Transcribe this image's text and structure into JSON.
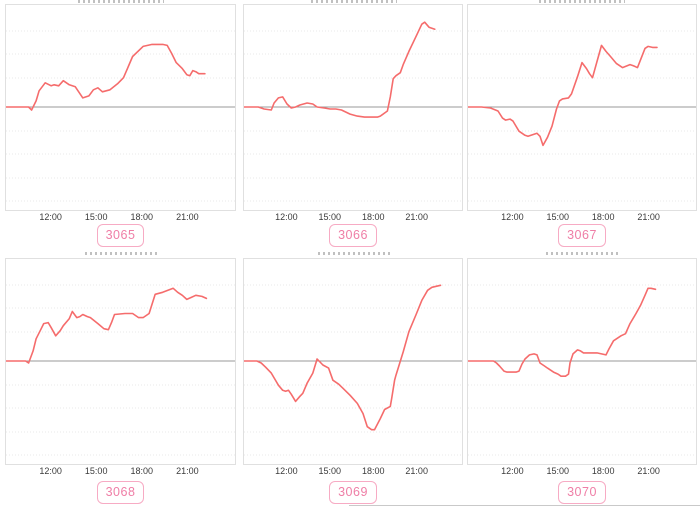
{
  "colors": {
    "line": "#f56c6c",
    "zero_line": "#9a9a9a",
    "grid": "#e9e9e9",
    "plot_border": "#e0e0e0",
    "tick_text": "#3a3a3a",
    "badge_border": "#f7abc4",
    "badge_text": "#ef7ea6",
    "divider": "#c9c9c9"
  },
  "axis": {
    "tick_labels": [
      "12:00",
      "15:00",
      "18:00",
      "21:00"
    ],
    "tick_hours": [
      12,
      15,
      18,
      21
    ],
    "hour_min": 9.0,
    "hour_max": 24.2,
    "y_axis_labels_visible": false,
    "zero_baseline": true,
    "grid": "horizontal-dotted"
  },
  "chart_data": [
    {
      "type": "line",
      "label": "3065",
      "x_unit": "time of day (hours)",
      "y_unit": "relative change vs. zero baseline (unlabeled axis, +1 = top of plot)",
      "points": [
        [
          9.0,
          0
        ],
        [
          10.5,
          0
        ],
        [
          10.7,
          -0.03
        ],
        [
          11.0,
          0.06
        ],
        [
          11.2,
          0.16
        ],
        [
          11.6,
          0.24
        ],
        [
          12.0,
          0.21
        ],
        [
          12.2,
          0.22
        ],
        [
          12.5,
          0.21
        ],
        [
          12.8,
          0.26
        ],
        [
          13.2,
          0.22
        ],
        [
          13.6,
          0.2
        ],
        [
          14.1,
          0.09
        ],
        [
          14.5,
          0.11
        ],
        [
          14.8,
          0.17
        ],
        [
          15.1,
          0.19
        ],
        [
          15.4,
          0.15
        ],
        [
          15.9,
          0.17
        ],
        [
          16.4,
          0.23
        ],
        [
          16.8,
          0.29
        ],
        [
          17.4,
          0.5
        ],
        [
          18.1,
          0.6
        ],
        [
          18.7,
          0.62
        ],
        [
          19.4,
          0.62
        ],
        [
          19.7,
          0.61
        ],
        [
          20.0,
          0.53
        ],
        [
          20.3,
          0.44
        ],
        [
          20.7,
          0.38
        ],
        [
          21.0,
          0.32
        ],
        [
          21.2,
          0.31
        ],
        [
          21.4,
          0.36
        ],
        [
          21.6,
          0.35
        ],
        [
          21.8,
          0.33
        ],
        [
          22.2,
          0.33
        ]
      ]
    },
    {
      "type": "line",
      "label": "3066",
      "x_unit": "time of day (hours)",
      "y_unit": "relative change vs. zero baseline (unlabeled axis, +1 = top of plot)",
      "points": [
        [
          9.0,
          0
        ],
        [
          10.0,
          0
        ],
        [
          10.4,
          -0.02
        ],
        [
          10.9,
          -0.03
        ],
        [
          11.1,
          0.04
        ],
        [
          11.4,
          0.09
        ],
        [
          11.7,
          0.1
        ],
        [
          12.0,
          0.03
        ],
        [
          12.3,
          -0.01
        ],
        [
          12.6,
          0.0
        ],
        [
          12.9,
          0.02
        ],
        [
          13.4,
          0.04
        ],
        [
          13.8,
          0.03
        ],
        [
          14.1,
          0.0
        ],
        [
          14.6,
          -0.01
        ],
        [
          15.0,
          -0.02
        ],
        [
          15.4,
          -0.02
        ],
        [
          15.8,
          -0.03
        ],
        [
          16.4,
          -0.07
        ],
        [
          16.9,
          -0.09
        ],
        [
          17.4,
          -0.1
        ],
        [
          17.9,
          -0.1
        ],
        [
          18.3,
          -0.1
        ],
        [
          18.5,
          -0.09
        ],
        [
          19.0,
          -0.04
        ],
        [
          19.2,
          0.1
        ],
        [
          19.4,
          0.28
        ],
        [
          19.6,
          0.31
        ],
        [
          19.9,
          0.34
        ],
        [
          20.1,
          0.42
        ],
        [
          20.5,
          0.55
        ],
        [
          21.0,
          0.7
        ],
        [
          21.4,
          0.82
        ],
        [
          21.6,
          0.84
        ],
        [
          21.9,
          0.79
        ],
        [
          22.3,
          0.77
        ]
      ]
    },
    {
      "type": "line",
      "label": "3067",
      "x_unit": "time of day (hours)",
      "y_unit": "relative change vs. zero baseline (unlabeled axis, +1 = top of plot)",
      "points": [
        [
          9.0,
          0
        ],
        [
          9.9,
          0
        ],
        [
          10.5,
          -0.01
        ],
        [
          11.0,
          -0.04
        ],
        [
          11.3,
          -0.11
        ],
        [
          11.5,
          -0.13
        ],
        [
          11.8,
          -0.12
        ],
        [
          12.0,
          -0.14
        ],
        [
          12.4,
          -0.24
        ],
        [
          12.8,
          -0.28
        ],
        [
          13.0,
          -0.29
        ],
        [
          13.4,
          -0.27
        ],
        [
          13.6,
          -0.26
        ],
        [
          13.8,
          -0.29
        ],
        [
          14.0,
          -0.38
        ],
        [
          14.3,
          -0.3
        ],
        [
          14.6,
          -0.19
        ],
        [
          14.9,
          -0.02
        ],
        [
          15.1,
          0.06
        ],
        [
          15.3,
          0.08
        ],
        [
          15.7,
          0.09
        ],
        [
          15.9,
          0.13
        ],
        [
          16.3,
          0.3
        ],
        [
          16.6,
          0.44
        ],
        [
          16.9,
          0.38
        ],
        [
          17.1,
          0.33
        ],
        [
          17.3,
          0.29
        ],
        [
          17.6,
          0.45
        ],
        [
          17.9,
          0.61
        ],
        [
          18.2,
          0.55
        ],
        [
          18.5,
          0.5
        ],
        [
          18.9,
          0.43
        ],
        [
          19.3,
          0.39
        ],
        [
          19.8,
          0.42
        ],
        [
          20.0,
          0.41
        ],
        [
          20.3,
          0.39
        ],
        [
          20.8,
          0.58
        ],
        [
          21.0,
          0.6
        ],
        [
          21.3,
          0.59
        ],
        [
          21.6,
          0.59
        ]
      ]
    },
    {
      "type": "line",
      "label": "3068",
      "x_unit": "time of day (hours)",
      "y_unit": "relative change vs. zero baseline (unlabeled axis, +1 = top of plot)",
      "points": [
        [
          9.0,
          0
        ],
        [
          10.3,
          0
        ],
        [
          10.5,
          -0.02
        ],
        [
          10.8,
          0.1
        ],
        [
          11.0,
          0.22
        ],
        [
          11.3,
          0.31
        ],
        [
          11.5,
          0.37
        ],
        [
          11.8,
          0.38
        ],
        [
          12.0,
          0.33
        ],
        [
          12.3,
          0.25
        ],
        [
          12.6,
          0.3
        ],
        [
          12.8,
          0.35
        ],
        [
          13.2,
          0.42
        ],
        [
          13.4,
          0.49
        ],
        [
          13.7,
          0.43
        ],
        [
          13.9,
          0.44
        ],
        [
          14.1,
          0.46
        ],
        [
          14.4,
          0.44
        ],
        [
          14.6,
          0.43
        ],
        [
          15.1,
          0.37
        ],
        [
          15.5,
          0.32
        ],
        [
          15.8,
          0.31
        ],
        [
          16.0,
          0.38
        ],
        [
          16.2,
          0.46
        ],
        [
          16.9,
          0.47
        ],
        [
          17.4,
          0.47
        ],
        [
          17.8,
          0.43
        ],
        [
          18.1,
          0.43
        ],
        [
          18.5,
          0.47
        ],
        [
          18.9,
          0.66
        ],
        [
          19.4,
          0.68
        ],
        [
          20.1,
          0.72
        ],
        [
          20.4,
          0.68
        ],
        [
          20.7,
          0.65
        ],
        [
          21.0,
          0.61
        ],
        [
          21.3,
          0.63
        ],
        [
          21.6,
          0.65
        ],
        [
          22.0,
          0.64
        ],
        [
          22.3,
          0.62
        ]
      ]
    },
    {
      "type": "line",
      "label": "3069",
      "x_unit": "time of day (hours)",
      "y_unit": "relative change vs. zero baseline (unlabeled axis, +1 = top of plot)",
      "points": [
        [
          9.0,
          0
        ],
        [
          9.9,
          0
        ],
        [
          10.2,
          -0.02
        ],
        [
          10.5,
          -0.06
        ],
        [
          10.9,
          -0.12
        ],
        [
          11.4,
          -0.24
        ],
        [
          11.7,
          -0.29
        ],
        [
          11.9,
          -0.3
        ],
        [
          12.1,
          -0.29
        ],
        [
          12.3,
          -0.33
        ],
        [
          12.6,
          -0.4
        ],
        [
          12.9,
          -0.35
        ],
        [
          13.1,
          -0.32
        ],
        [
          13.4,
          -0.22
        ],
        [
          13.8,
          -0.12
        ],
        [
          14.1,
          0.02
        ],
        [
          14.3,
          -0.01
        ],
        [
          14.5,
          -0.04
        ],
        [
          14.9,
          -0.07
        ],
        [
          15.2,
          -0.19
        ],
        [
          15.6,
          -0.23
        ],
        [
          15.9,
          -0.27
        ],
        [
          16.4,
          -0.34
        ],
        [
          16.9,
          -0.42
        ],
        [
          17.3,
          -0.52
        ],
        [
          17.6,
          -0.65
        ],
        [
          17.9,
          -0.68
        ],
        [
          18.1,
          -0.68
        ],
        [
          18.5,
          -0.57
        ],
        [
          18.8,
          -0.48
        ],
        [
          19.2,
          -0.45
        ],
        [
          19.3,
          -0.37
        ],
        [
          19.5,
          -0.19
        ],
        [
          19.6,
          -0.14
        ],
        [
          20.1,
          0.09
        ],
        [
          20.5,
          0.29
        ],
        [
          21.0,
          0.46
        ],
        [
          21.4,
          0.6
        ],
        [
          21.8,
          0.7
        ],
        [
          22.1,
          0.73
        ],
        [
          22.4,
          0.74
        ],
        [
          22.7,
          0.75
        ]
      ]
    },
    {
      "type": "line",
      "label": "3070",
      "x_unit": "time of day (hours)",
      "y_unit": "relative change vs. zero baseline (unlabeled axis, +1 = top of plot)",
      "points": [
        [
          9.0,
          0
        ],
        [
          10.7,
          0
        ],
        [
          10.9,
          -0.02
        ],
        [
          11.1,
          -0.05
        ],
        [
          11.4,
          -0.1
        ],
        [
          11.6,
          -0.11
        ],
        [
          12.2,
          -0.11
        ],
        [
          12.4,
          -0.1
        ],
        [
          12.6,
          -0.03
        ],
        [
          12.8,
          0.02
        ],
        [
          13.1,
          0.06
        ],
        [
          13.4,
          0.07
        ],
        [
          13.6,
          0.06
        ],
        [
          13.8,
          -0.02
        ],
        [
          14.1,
          -0.05
        ],
        [
          14.3,
          -0.07
        ],
        [
          14.7,
          -0.11
        ],
        [
          15.0,
          -0.13
        ],
        [
          15.2,
          -0.15
        ],
        [
          15.5,
          -0.15
        ],
        [
          15.7,
          -0.13
        ],
        [
          15.8,
          -0.02
        ],
        [
          16.0,
          0.07
        ],
        [
          16.3,
          0.11
        ],
        [
          16.5,
          0.1
        ],
        [
          16.7,
          0.08
        ],
        [
          17.1,
          0.08
        ],
        [
          17.6,
          0.08
        ],
        [
          17.9,
          0.07
        ],
        [
          18.2,
          0.06
        ],
        [
          18.4,
          0.12
        ],
        [
          18.7,
          0.2
        ],
        [
          19.0,
          0.23
        ],
        [
          19.2,
          0.25
        ],
        [
          19.5,
          0.27
        ],
        [
          19.8,
          0.37
        ],
        [
          20.2,
          0.47
        ],
        [
          20.5,
          0.55
        ],
        [
          20.8,
          0.65
        ],
        [
          21.0,
          0.72
        ],
        [
          21.2,
          0.72
        ],
        [
          21.5,
          0.71
        ]
      ]
    }
  ]
}
